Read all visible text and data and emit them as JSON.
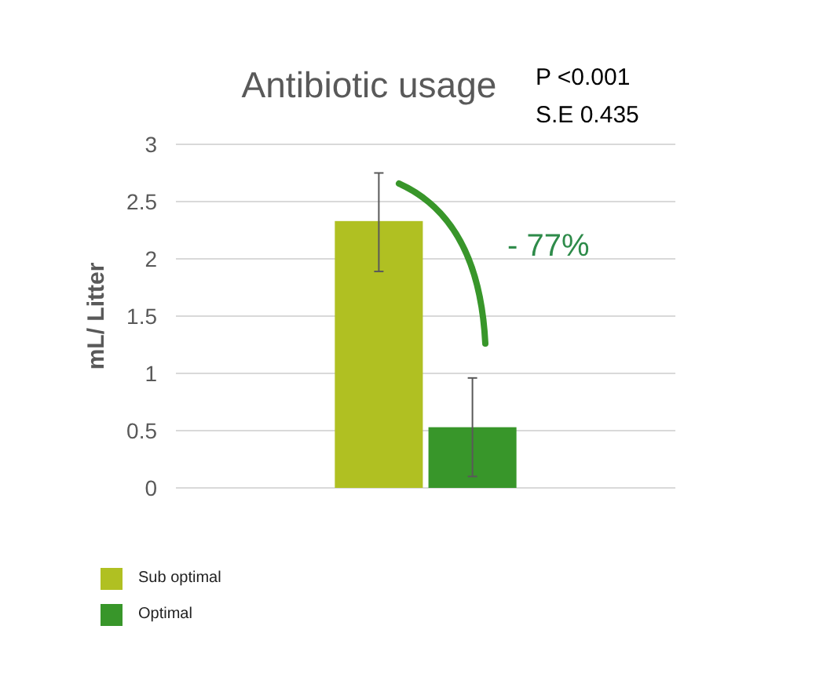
{
  "chart_data": {
    "type": "bar",
    "title": "Antibiotic usage",
    "ylabel": "mL/ Litter",
    "categories": [
      null
    ],
    "series": [
      {
        "name": "Sub optimal",
        "color": "#b0c022",
        "values": [
          2.33
        ],
        "errors": [
          [
            1.89,
            2.75
          ]
        ]
      },
      {
        "name": "Optimal",
        "color": "#38962a",
        "values": [
          0.53
        ],
        "errors": [
          [
            0.1,
            0.96
          ]
        ]
      }
    ],
    "ylim": [
      0,
      3
    ],
    "yticks": [
      0,
      0.5,
      1,
      1.5,
      2,
      2.5,
      3
    ],
    "grid": "y",
    "legend": "bottom left",
    "annotations": [
      "P <0.001",
      "S.E 0.435",
      "- 77%"
    ]
  }
}
